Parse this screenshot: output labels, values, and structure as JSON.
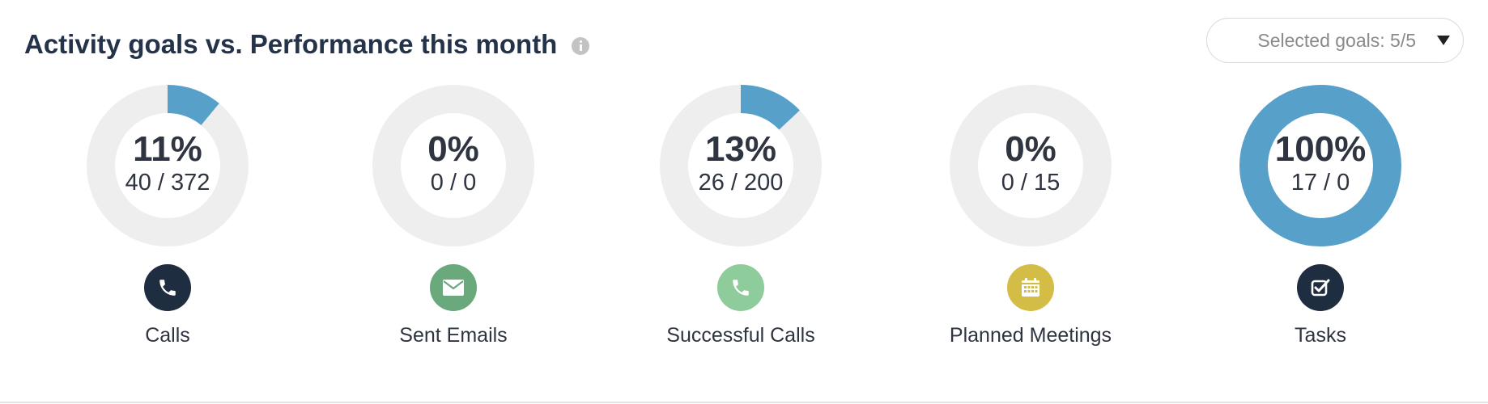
{
  "header": {
    "title": "Activity goals vs. Performance this month",
    "info_icon": "info-icon"
  },
  "goals_select": {
    "label": "Selected goals: 5/5",
    "icon": "caret-down-icon"
  },
  "goals": [
    {
      "label": "Calls",
      "percent_text": "11%",
      "ratio_text": "40 / 372",
      "fraction": 0.11,
      "icon": "phone-icon",
      "icon_bg": "#1f2d40"
    },
    {
      "label": "Sent Emails",
      "percent_text": "0%",
      "ratio_text": "0 / 0",
      "fraction": 0,
      "icon": "envelope-icon",
      "icon_bg": "#6aa97b"
    },
    {
      "label": "Successful Calls",
      "percent_text": "13%",
      "ratio_text": "26 / 200",
      "fraction": 0.13,
      "icon": "phone-icon",
      "icon_bg": "#8fcc9b"
    },
    {
      "label": "Planned Meetings",
      "percent_text": "0%",
      "ratio_text": "0 / 15",
      "fraction": 0,
      "icon": "calendar-icon",
      "icon_bg": "#d4bd47"
    },
    {
      "label": "Tasks",
      "percent_text": "100%",
      "ratio_text": "17 / 0",
      "fraction": 1,
      "icon": "checkbox-icon",
      "icon_bg": "#1f2d40"
    }
  ],
  "colors": {
    "progress": "#57a0c9",
    "track": "#eeeeee",
    "text": "#2f3441",
    "title": "#24324a"
  }
}
